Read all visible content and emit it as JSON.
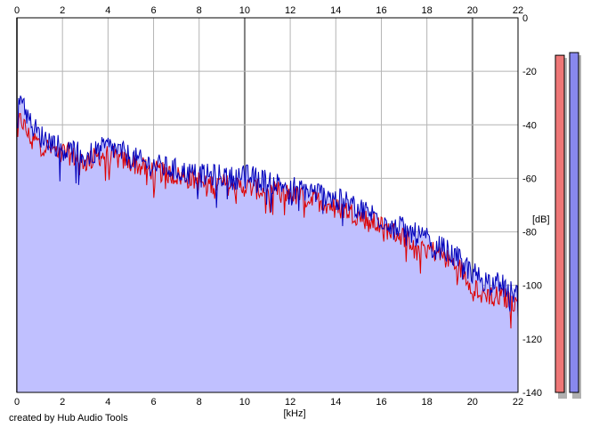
{
  "credit": "created by Hub Audio Tools",
  "colors": {
    "left_channel": "#dd0000",
    "right_channel": "#0000bb",
    "fill": "#c0c0ff",
    "meter_left": "#ee7777",
    "meter_right": "#8888ee",
    "grid": "#b4b4b4",
    "grid_major": "#808080"
  },
  "chart_data": {
    "type": "line",
    "xlabel": "[kHz]",
    "ylabel": "[dB]",
    "xlim": [
      0,
      22
    ],
    "ylim": [
      -140,
      0
    ],
    "x_ticks": [
      "0",
      "2",
      "4",
      "6",
      "8",
      "10",
      "12",
      "14",
      "16",
      "18",
      "20",
      "22"
    ],
    "y_ticks": [
      "0",
      "-20",
      "-40",
      "-60",
      "-80",
      "-100",
      "-120",
      "-140"
    ],
    "grid": true,
    "series": [
      {
        "key": "left",
        "color": "#dd0000",
        "x": [
          0,
          0.2,
          0.5,
          1,
          1.5,
          2,
          2.5,
          3,
          3.5,
          4,
          4.5,
          5,
          5.5,
          6,
          6.5,
          7,
          7.5,
          8,
          8.5,
          9,
          9.5,
          10,
          10.5,
          11,
          11.5,
          12,
          12.5,
          13,
          13.5,
          14,
          14.5,
          15,
          15.5,
          16,
          16.5,
          17,
          17.5,
          18,
          18.5,
          19,
          19.5,
          20,
          20.5,
          21,
          21.5,
          22
        ],
        "y": [
          -40,
          -38,
          -44,
          -47,
          -49,
          -50,
          -52,
          -54,
          -52,
          -51,
          -53,
          -54,
          -56,
          -57,
          -58,
          -59,
          -60,
          -61,
          -62,
          -62,
          -63,
          -63,
          -64,
          -65,
          -65,
          -66,
          -67,
          -68,
          -69,
          -71,
          -72,
          -74,
          -76,
          -78,
          -80,
          -82,
          -84,
          -86,
          -88,
          -91,
          -94,
          -100,
          -103,
          -104,
          -105,
          -107
        ]
      },
      {
        "key": "right",
        "color": "#0000bb",
        "x": [
          0,
          0.2,
          0.5,
          1,
          1.5,
          2,
          2.5,
          3,
          3.5,
          4,
          4.5,
          5,
          5.5,
          6,
          6.5,
          7,
          7.5,
          8,
          8.5,
          9,
          9.5,
          10,
          10.5,
          11,
          11.5,
          12,
          12.5,
          13,
          13.5,
          14,
          14.5,
          15,
          15.5,
          16,
          16.5,
          17,
          17.5,
          18,
          18.5,
          19,
          19.5,
          20,
          20.5,
          21,
          21.5,
          22
        ],
        "y": [
          -35,
          -28,
          -38,
          -44,
          -46,
          -49,
          -50,
          -52,
          -50,
          -48,
          -50,
          -52,
          -54,
          -55,
          -56,
          -57,
          -58,
          -59,
          -59,
          -59,
          -60,
          -59,
          -60,
          -61,
          -62,
          -63,
          -64,
          -65,
          -66,
          -68,
          -69,
          -71,
          -73,
          -75,
          -77,
          -79,
          -81,
          -83,
          -85,
          -88,
          -91,
          -95,
          -98,
          -99,
          -101,
          -103
        ]
      }
    ],
    "meters": {
      "left_level_db": -14,
      "right_level_db": -13
    }
  }
}
